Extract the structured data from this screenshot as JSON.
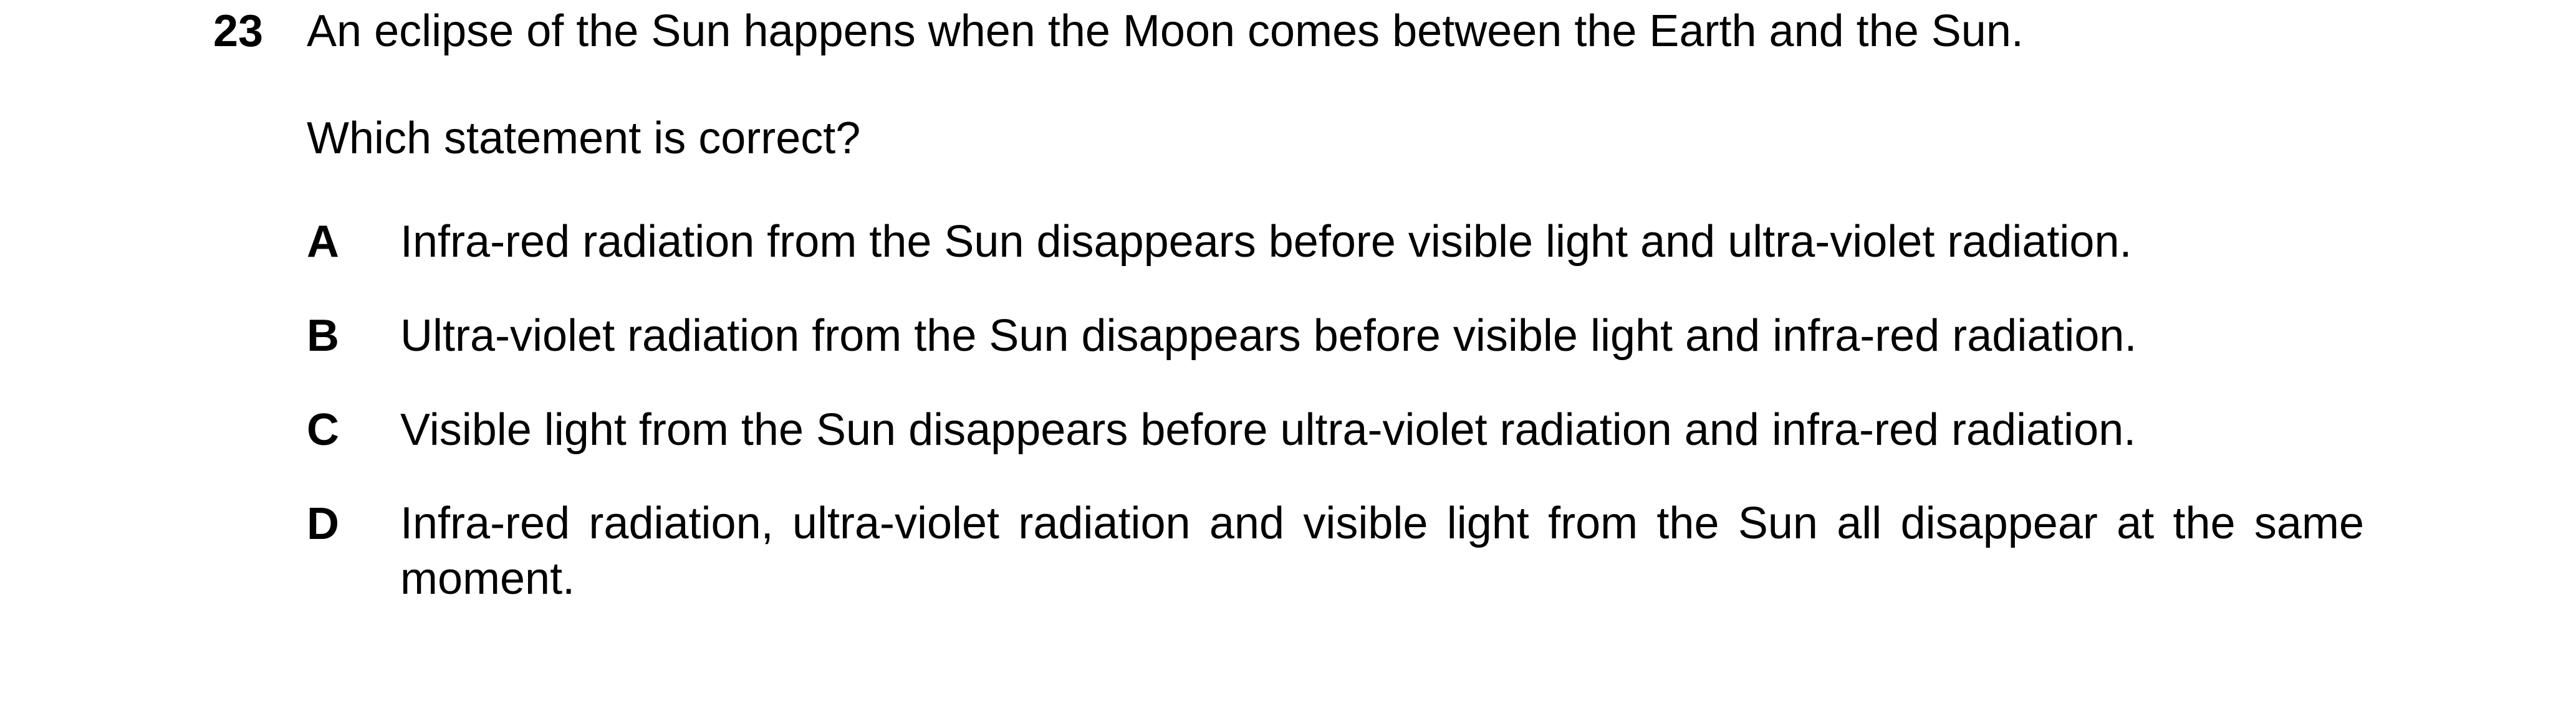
{
  "question": {
    "number": "23",
    "stem": "An eclipse of the Sun happens when the Moon comes between the Earth and the Sun.",
    "prompt": "Which statement is correct?",
    "options": [
      {
        "letter": "A",
        "text": "Infra-red radiation from the Sun disappears before visible light and ultra-violet radiation."
      },
      {
        "letter": "B",
        "text": "Ultra-violet radiation from the Sun disappears before visible light and infra-red radiation."
      },
      {
        "letter": "C",
        "text": "Visible light from the Sun disappears before ultra-violet radiation and infra-red radiation."
      },
      {
        "letter": "D",
        "text": "Infra-red radiation, ultra-violet radiation and visible light from the Sun all disappear at the same moment."
      }
    ]
  }
}
